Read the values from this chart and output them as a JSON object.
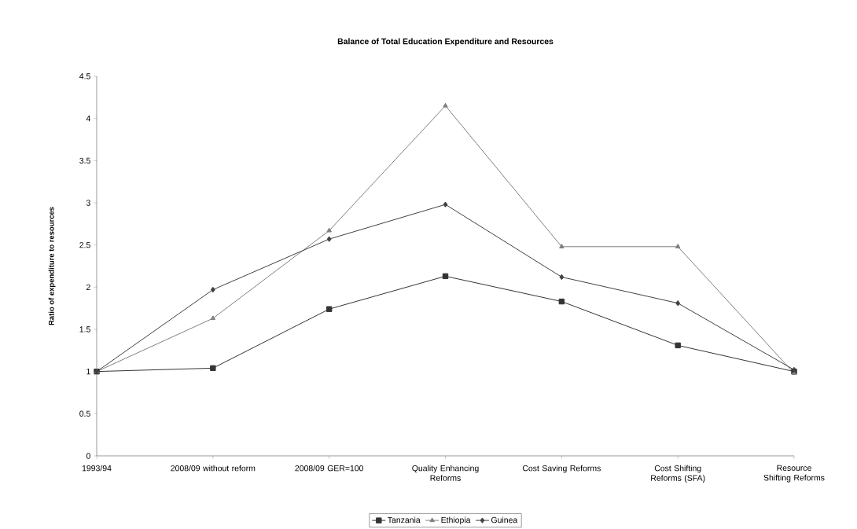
{
  "chart_data": {
    "type": "line",
    "title": "Balance of Total Education Expenditure and Resources",
    "ylabel": "Ratio of expenditure to resources",
    "categories": [
      "1993/94",
      "2008/09 without reform",
      "2008/09 GER=100",
      "Quality Enhancing Reforms",
      "Cost Saving Reforms",
      "Cost Shifting Reforms (SFA)",
      "Resource Shifting Reforms"
    ],
    "series": [
      {
        "name": "Tanzania",
        "color": "#333333",
        "marker": "square",
        "values": [
          1.0,
          1.04,
          1.74,
          2.13,
          1.83,
          1.31,
          1.0
        ]
      },
      {
        "name": "Ethiopia",
        "color": "#808080",
        "marker": "triangle",
        "values": [
          1.0,
          1.63,
          2.67,
          4.15,
          2.48,
          2.48,
          0.98
        ]
      },
      {
        "name": "Guinea",
        "color": "#404040",
        "marker": "diamond",
        "values": [
          1.0,
          1.97,
          2.57,
          2.98,
          2.12,
          1.81,
          1.02
        ]
      }
    ],
    "ylim": [
      0,
      4.5
    ],
    "yticks": [
      0,
      0.5,
      1,
      1.5,
      2,
      2.5,
      3,
      3.5,
      4,
      4.5
    ],
    "grid": false,
    "legend": "bottom",
    "line_style": "solid"
  }
}
